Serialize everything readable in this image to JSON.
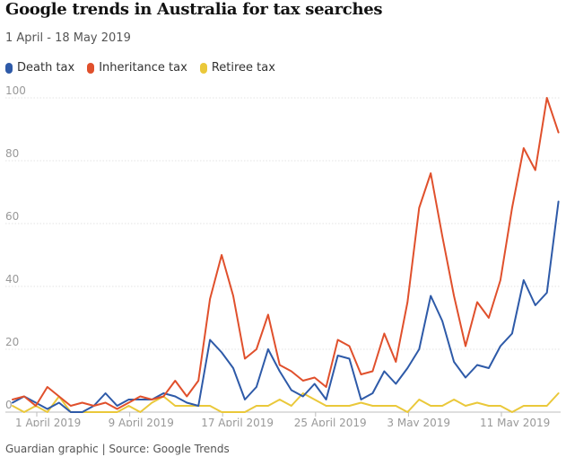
{
  "chart_data": {
    "type": "line",
    "title": "Google trends in Australia for tax searches",
    "subtitle": "1 April - 18 May 2019",
    "source": "Guardian graphic | Source: Google Trends",
    "xlabel": "",
    "ylabel": "",
    "ylim": [
      0,
      100
    ],
    "y_ticks": [
      "100",
      "80",
      "60",
      "40",
      "20",
      "0"
    ],
    "x_tick_labels": [
      {
        "day": 0,
        "label": "1 April 2019"
      },
      {
        "day": 8,
        "label": "9 April 2019"
      },
      {
        "day": 16,
        "label": "17 April 2019"
      },
      {
        "day": 24,
        "label": "25 April 2019"
      },
      {
        "day": 32,
        "label": "3 May 2019"
      },
      {
        "day": 40,
        "label": "11 May 2019"
      }
    ],
    "series": [
      {
        "name": "Death tax",
        "color": "#2e5aa8",
        "values": [
          3,
          5,
          3,
          1,
          3,
          0,
          0,
          2,
          6,
          2,
          4,
          4,
          4,
          6,
          5,
          3,
          2,
          23,
          19,
          14,
          4,
          8,
          20,
          13,
          7,
          5,
          9,
          4,
          18,
          17,
          4,
          6,
          13,
          9,
          14,
          20,
          37,
          29,
          16,
          11,
          15,
          14,
          21,
          25,
          42,
          34,
          38,
          67
        ]
      },
      {
        "name": "Inheritance tax",
        "color": "#e0502c",
        "values": [
          4,
          5,
          2,
          8,
          5,
          2,
          3,
          2,
          3,
          1,
          3,
          5,
          4,
          5,
          10,
          5,
          10,
          36,
          50,
          37,
          17,
          20,
          31,
          15,
          13,
          10,
          11,
          8,
          23,
          21,
          12,
          13,
          25,
          16,
          35,
          65,
          76,
          56,
          37,
          21,
          35,
          30,
          42,
          65,
          84,
          77,
          100,
          89
        ]
      },
      {
        "name": "Retiree tax",
        "color": "#eac83a",
        "values": [
          2,
          0,
          2,
          0,
          5,
          0,
          0,
          0,
          0,
          0,
          2,
          0,
          3,
          5,
          2,
          2,
          2,
          2,
          0,
          0,
          0,
          2,
          2,
          4,
          2,
          6,
          4,
          2,
          2,
          2,
          3,
          2,
          2,
          2,
          0,
          4,
          2,
          2,
          4,
          2,
          3,
          2,
          2,
          0,
          2,
          2,
          2,
          6
        ]
      }
    ],
    "legend": [
      "Death tax",
      "Inheritance tax",
      "Retiree tax"
    ]
  }
}
